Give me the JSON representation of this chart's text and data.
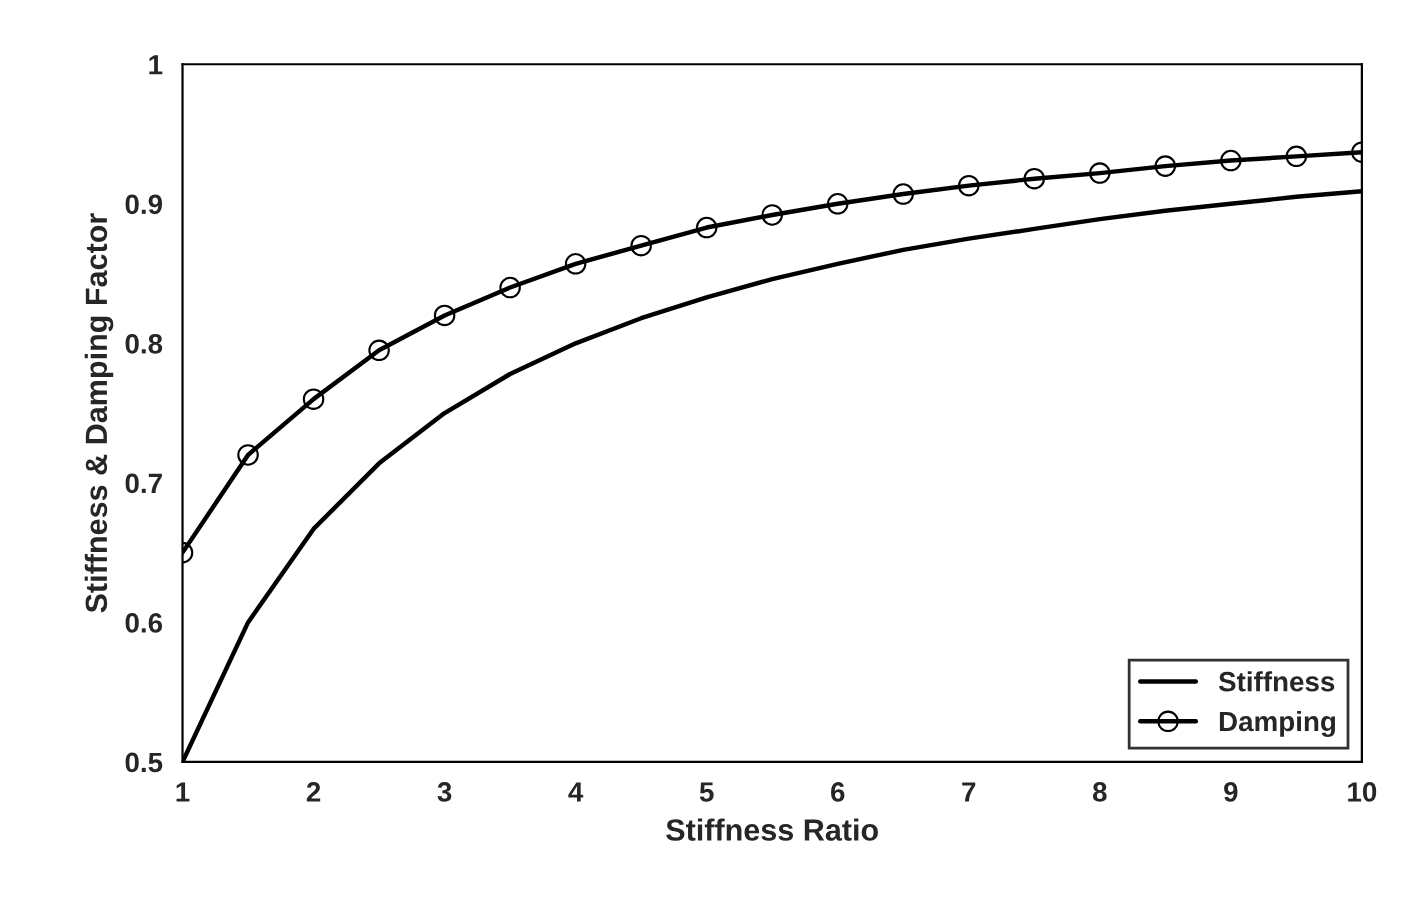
{
  "chart_data": {
    "type": "line",
    "xlabel": "Stiffness Ratio",
    "ylabel": "Stiffness & Damping Factor",
    "x": [
      1,
      1.5,
      2,
      2.5,
      3,
      3.5,
      4,
      4.5,
      5,
      5.5,
      6,
      6.5,
      7,
      7.5,
      8,
      8.5,
      9,
      9.5,
      10
    ],
    "series": [
      {
        "name": "Stiffness",
        "color": "#000000",
        "marker": "none",
        "values": [
          0.5,
          0.6,
          0.667,
          0.714,
          0.75,
          0.778,
          0.8,
          0.818,
          0.833,
          0.846,
          0.857,
          0.867,
          0.875,
          0.882,
          0.889,
          0.895,
          0.9,
          0.905,
          0.909
        ]
      },
      {
        "name": "Damping",
        "color": "#000000",
        "marker": "circle",
        "values": [
          0.65,
          0.72,
          0.76,
          0.795,
          0.82,
          0.84,
          0.857,
          0.87,
          0.883,
          0.892,
          0.9,
          0.907,
          0.913,
          0.918,
          0.922,
          0.927,
          0.931,
          0.934,
          0.937
        ]
      }
    ],
    "xlim": [
      1,
      10
    ],
    "xticks": [
      1,
      2,
      3,
      4,
      5,
      6,
      7,
      8,
      9,
      10
    ],
    "ylim": [
      0.5,
      1
    ],
    "yticks": [
      0.5,
      0.6,
      0.7,
      0.8,
      0.9,
      1
    ],
    "grid": false,
    "legend": "bottom right",
    "line_style": "solid"
  }
}
